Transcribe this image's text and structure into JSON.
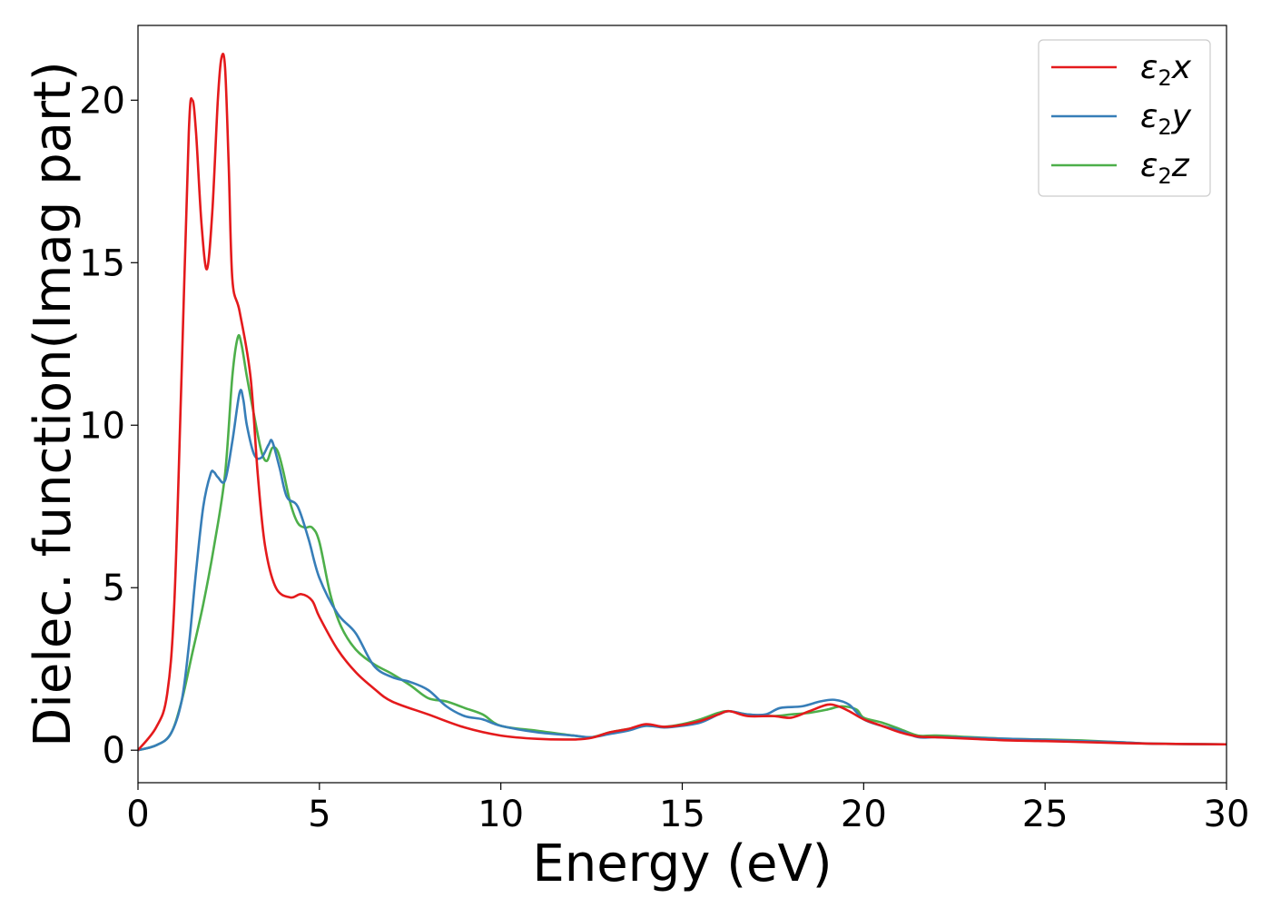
{
  "chart_data": {
    "type": "line",
    "title": "",
    "xlabel": "Energy (eV)",
    "ylabel": "Dielec. function(Imag part)",
    "xlim": [
      0,
      30
    ],
    "ylim": [
      -1,
      22.3
    ],
    "xticks": [
      0,
      5,
      10,
      15,
      20,
      25,
      30
    ],
    "xtick_labels": [
      "0",
      "5",
      "10",
      "15",
      "20",
      "25",
      "30"
    ],
    "yticks": [
      0,
      5,
      10,
      15,
      20
    ],
    "ytick_labels": [
      "0",
      "5",
      "10",
      "15",
      "20"
    ],
    "grid": false,
    "legend_position": "top-right",
    "series": [
      {
        "name": "ε2x",
        "legend": {
          "sym": "ε",
          "sub": "2",
          "var": "x"
        },
        "color": "#e41a1c",
        "x": [
          0,
          0.5,
          0.8,
          1.0,
          1.2,
          1.4,
          1.5,
          1.6,
          1.75,
          1.9,
          2.05,
          2.2,
          2.3,
          2.4,
          2.5,
          2.6,
          2.8,
          3.1,
          3.3,
          3.5,
          3.8,
          4.2,
          4.5,
          4.8,
          5.0,
          5.5,
          6.0,
          6.5,
          7.0,
          8.0,
          9.0,
          10.0,
          11.0,
          12.0,
          12.5,
          13.0,
          13.5,
          14.0,
          14.5,
          15.0,
          15.5,
          16.0,
          16.3,
          16.8,
          17.5,
          18.0,
          18.5,
          19.0,
          19.3,
          19.6,
          20.0,
          20.5,
          21.0,
          21.5,
          22.0,
          23.0,
          24.0,
          25.0,
          26.0,
          27.0,
          28.0,
          30.0
        ],
        "y": [
          0,
          0.7,
          1.7,
          4.5,
          11.5,
          19.0,
          20.0,
          19.0,
          16.2,
          14.8,
          16.6,
          20.0,
          21.3,
          21.0,
          18.0,
          14.5,
          13.5,
          11.5,
          8.5,
          6.3,
          5.0,
          4.7,
          4.8,
          4.6,
          4.1,
          3.1,
          2.4,
          1.9,
          1.5,
          1.1,
          0.7,
          0.45,
          0.35,
          0.33,
          0.38,
          0.55,
          0.65,
          0.8,
          0.72,
          0.78,
          0.9,
          1.1,
          1.2,
          1.05,
          1.05,
          1.0,
          1.2,
          1.4,
          1.35,
          1.2,
          0.95,
          0.75,
          0.55,
          0.42,
          0.4,
          0.35,
          0.3,
          0.28,
          0.25,
          0.22,
          0.2,
          0.18
        ]
      },
      {
        "name": "ε2y",
        "legend": {
          "sym": "ε",
          "sub": "2",
          "var": "y"
        },
        "color": "#377eb8",
        "x": [
          0,
          0.5,
          0.9,
          1.2,
          1.4,
          1.6,
          1.8,
          2.0,
          2.1,
          2.2,
          2.4,
          2.6,
          2.8,
          2.9,
          3.0,
          3.2,
          3.4,
          3.6,
          3.7,
          3.9,
          4.1,
          4.4,
          4.7,
          5.0,
          5.5,
          6.0,
          6.5,
          7.0,
          7.5,
          8.0,
          8.5,
          9.0,
          9.5,
          10.0,
          11.0,
          12.0,
          12.5,
          13.0,
          13.5,
          14.0,
          14.5,
          15.0,
          15.5,
          16.0,
          16.3,
          16.8,
          17.3,
          17.7,
          18.3,
          18.8,
          19.2,
          19.6,
          20.0,
          20.5,
          21.0,
          21.5,
          22.0,
          23.0,
          24.0,
          25.0,
          26.0,
          27.0,
          28.0,
          30.0
        ],
        "y": [
          0,
          0.15,
          0.5,
          1.5,
          3.2,
          5.5,
          7.5,
          8.5,
          8.55,
          8.4,
          8.3,
          9.5,
          11.0,
          10.8,
          10.0,
          9.1,
          9.0,
          9.4,
          9.5,
          8.7,
          7.8,
          7.5,
          6.5,
          5.3,
          4.2,
          3.6,
          2.6,
          2.25,
          2.1,
          1.85,
          1.35,
          1.05,
          0.95,
          0.75,
          0.55,
          0.45,
          0.4,
          0.5,
          0.6,
          0.75,
          0.7,
          0.75,
          0.85,
          1.1,
          1.2,
          1.1,
          1.1,
          1.3,
          1.35,
          1.5,
          1.55,
          1.4,
          0.95,
          0.75,
          0.6,
          0.4,
          0.4,
          0.38,
          0.35,
          0.32,
          0.28,
          0.25,
          0.2,
          0.18
        ]
      },
      {
        "name": "ε2z",
        "legend": {
          "sym": "ε",
          "sub": "2",
          "var": "z"
        },
        "color": "#4daf4a",
        "x": [
          0,
          0.5,
          0.9,
          1.2,
          1.5,
          1.8,
          2.1,
          2.4,
          2.6,
          2.75,
          2.85,
          3.0,
          3.2,
          3.4,
          3.55,
          3.7,
          3.85,
          4.0,
          4.2,
          4.4,
          4.6,
          4.8,
          5.0,
          5.3,
          5.6,
          6.0,
          6.5,
          7.0,
          7.5,
          8.0,
          8.5,
          9.0,
          9.5,
          10.0,
          11.0,
          12.0,
          12.5,
          13.0,
          13.5,
          14.0,
          14.5,
          15.0,
          15.5,
          16.0,
          16.3,
          16.8,
          17.5,
          18.0,
          18.5,
          19.0,
          19.4,
          19.8,
          20.0,
          20.5,
          21.0,
          21.5,
          22.0,
          23.0,
          24.0,
          25.0,
          26.0,
          27.0,
          28.0,
          30.0
        ],
        "y": [
          0,
          0.15,
          0.5,
          1.5,
          3.0,
          4.5,
          6.3,
          8.5,
          11.5,
          12.7,
          12.5,
          11.5,
          10.3,
          9.2,
          8.9,
          9.3,
          9.2,
          8.6,
          7.6,
          7.0,
          6.85,
          6.85,
          6.4,
          4.8,
          3.8,
          3.1,
          2.65,
          2.35,
          2.0,
          1.6,
          1.5,
          1.3,
          1.1,
          0.75,
          0.6,
          0.45,
          0.4,
          0.55,
          0.65,
          0.75,
          0.72,
          0.8,
          0.95,
          1.15,
          1.2,
          1.1,
          1.05,
          1.1,
          1.15,
          1.25,
          1.35,
          1.25,
          1.0,
          0.85,
          0.65,
          0.45,
          0.45,
          0.4,
          0.35,
          0.33,
          0.3,
          0.25,
          0.2,
          0.18
        ]
      }
    ]
  }
}
